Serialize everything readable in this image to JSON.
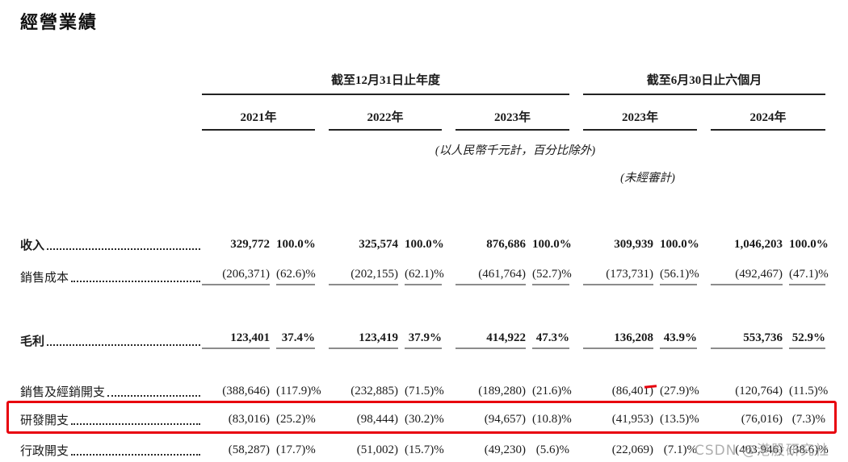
{
  "title": "經營業績",
  "table": {
    "group_headers": [
      {
        "label": "截至12月31日止年度"
      },
      {
        "label": "截至6月30日止六個月"
      }
    ],
    "year_headers": [
      "2021年",
      "2022年",
      "2023年",
      "2023年",
      "2024年"
    ],
    "note": "(以人民幣千元計，百分比除外)",
    "unaudited_note": "(未經審計)",
    "rows": [
      {
        "label": "收入",
        "bold": true,
        "underline": false,
        "highlighted": false,
        "values": [
          "329,772",
          "100.0%",
          "325,574",
          "100.0%",
          "876,686",
          "100.0%",
          "309,939",
          "100.0%",
          "1,046,203",
          "100.0%"
        ]
      },
      {
        "label": "銷售成本",
        "bold": false,
        "underline": true,
        "highlighted": false,
        "values": [
          "(206,371)",
          "(62.6)%",
          "(202,155)",
          "(62.1)%",
          "(461,764)",
          "(52.7)%",
          "(173,731)",
          "(56.1)%",
          "(492,467)",
          "(47.1)%"
        ]
      },
      {
        "label": "毛利",
        "bold": true,
        "underline": true,
        "highlighted": false,
        "values": [
          "123,401",
          "37.4%",
          "123,419",
          "37.9%",
          "414,922",
          "47.3%",
          "136,208",
          "43.9%",
          "553,736",
          "52.9%"
        ]
      },
      {
        "label": "銷售及經銷開支",
        "bold": false,
        "underline": false,
        "highlighted": false,
        "values": [
          "(388,646)",
          "(117.9)%",
          "(232,885)",
          "(71.5)%",
          "(189,280)",
          "(21.6)%",
          "(86,401)",
          "(27.9)%",
          "(120,764)",
          "(11.5)%"
        ]
      },
      {
        "label": "研發開支",
        "bold": false,
        "underline": false,
        "highlighted": true,
        "values": [
          "(83,016)",
          "(25.2)%",
          "(98,444)",
          "(30.2)%",
          "(94,657)",
          "(10.8)%",
          "(41,953)",
          "(13.5)%",
          "(76,016)",
          "(7.3)%"
        ]
      },
      {
        "label": "行政開支",
        "bold": false,
        "underline": false,
        "highlighted": false,
        "values": [
          "(58,287)",
          "(17.7)%",
          "(51,002)",
          "(15.7)%",
          "(49,230)",
          "(5.6)%",
          "(22,069)",
          "(7.1)%",
          "(403,946)",
          "(38.6)%"
        ]
      }
    ]
  },
  "annotations": {
    "highlight_color": "#e8000d",
    "highlighted_row": "研發開支"
  },
  "watermark": "CSDN @港股研究社"
}
